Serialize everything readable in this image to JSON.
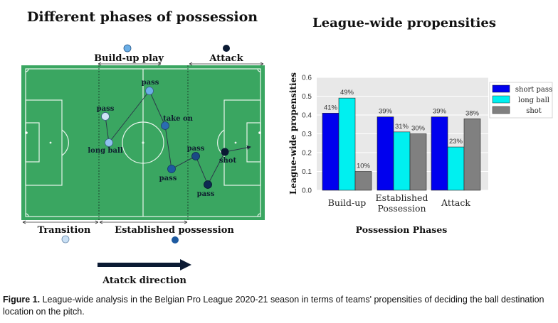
{
  "left_panel": {
    "title": "Different phases of possession",
    "phase_labels": {
      "build_up": "Build-up play",
      "attack": "Attack",
      "transition": "Transition",
      "established": "Established possession"
    },
    "pitch_labels": {
      "pass_1": "pass",
      "long_ball": "long ball",
      "pass_2": "pass",
      "take_on": "take on",
      "pass_3": "pass",
      "pass_4": "pass",
      "shot": "shot",
      "pass_5": "pass"
    },
    "direction_label": "Atatck direction",
    "colors": {
      "pitch": "#3aa661",
      "build_up": "#6aaee6",
      "attack": "#0b1a33",
      "transition": "#c9e0f5",
      "established": "#1d5aa0"
    }
  },
  "chart_data": {
    "type": "bar",
    "title": "League-wide propensities",
    "xlabel": "Possession Phases",
    "ylabel": "League-wide propensities",
    "ylim": [
      0,
      0.6
    ],
    "yticks": [
      "0.0",
      "0.1",
      "0.2",
      "0.3",
      "0.4",
      "0.5",
      "0.6"
    ],
    "categories": [
      "Build-up",
      "Established Possession",
      "Attack"
    ],
    "series": [
      {
        "name": "short pass",
        "color": "#0000ee",
        "values": [
          0.41,
          0.39,
          0.39
        ],
        "labels": [
          "41%",
          "39%",
          "39%"
        ]
      },
      {
        "name": "long ball",
        "color": "#00f0f0",
        "values": [
          0.49,
          0.31,
          0.23
        ],
        "labels": [
          "49%",
          "31%",
          "23%"
        ]
      },
      {
        "name": "shot",
        "color": "#808080",
        "values": [
          0.1,
          0.3,
          0.38
        ],
        "labels": [
          "10%",
          "30%",
          "38%"
        ]
      }
    ],
    "legend_position": "top-right",
    "grid": true
  },
  "caption": {
    "figure_label": "Figure 1.",
    "text": "League-wide analysis in the Belgian Pro League 2020-21 season in terms of teams' propensities of deciding the ball destination location on the pitch."
  }
}
